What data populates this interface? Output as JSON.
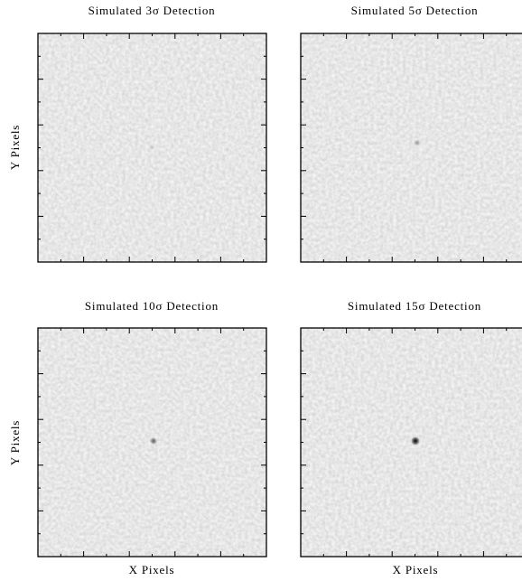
{
  "panels": [
    {
      "title": "Simulated 3σ Detection",
      "y_label": "Y Pixels"
    },
    {
      "title": "Simulated 5σ Detection"
    },
    {
      "title": "Simulated 10σ Detection",
      "y_label": "Y Pixels",
      "x_label": "X Pixels"
    },
    {
      "title": "Simulated 15σ Detection",
      "x_label": "X Pixels"
    }
  ]
}
